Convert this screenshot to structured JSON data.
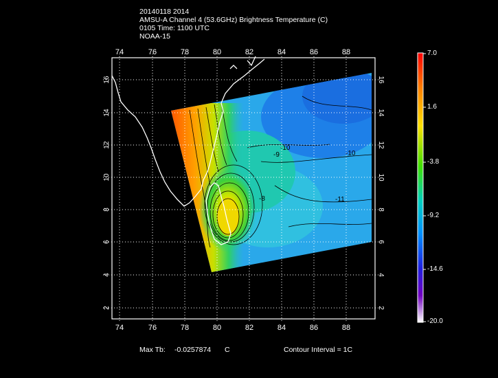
{
  "header": {
    "line1": "20140118 2014",
    "line2": "AMSU-A Channel 4 (53.6GHz) Brightness Temperature (C)",
    "line3": "0105 Time: 1100 UTC",
    "line4": "NOAA-15"
  },
  "map": {
    "lon_range": [
      73,
      90
    ],
    "lat_range": [
      1,
      17
    ],
    "lon_ticks": [
      "74",
      "76",
      "78",
      "80",
      "82",
      "84",
      "86",
      "88"
    ],
    "lat_ticks": [
      "2",
      "4",
      "6",
      "8",
      "10",
      "12",
      "14",
      "16"
    ],
    "grid": "dotted",
    "contour_labels": [
      "-10",
      "-9",
      "-10",
      "-8",
      "-11"
    ]
  },
  "colorbar": {
    "labels": [
      "7.0",
      "1.6",
      "-3.8",
      "-9.2",
      "-14.6",
      "-20.0"
    ],
    "min": -20.0,
    "max": 7.0
  },
  "footer": {
    "max_tb_label": "Max Tb:",
    "max_tb_value": "-0.0257874",
    "max_tb_unit": "C",
    "contour_interval": "Contour Interval = 1C"
  }
}
